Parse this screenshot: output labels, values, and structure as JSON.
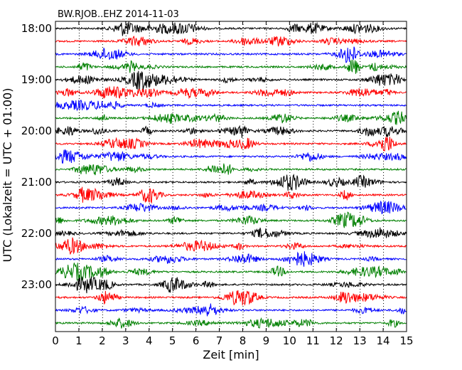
{
  "chart_data": {
    "type": "line",
    "title": "BW.RJOB..EHZ 2014-11-03",
    "xlabel": "Zeit  [min]",
    "ylabel": "UTC (Lokalzeit = UTC + 01:00)",
    "xlim": [
      0,
      15
    ],
    "x_ticks": [
      "0",
      "1",
      "2",
      "3",
      "4",
      "5",
      "6",
      "7",
      "8",
      "9",
      "10",
      "11",
      "12",
      "13",
      "14",
      "15"
    ],
    "y_tick_labels": [
      "18:00",
      "19:00",
      "20:00",
      "21:00",
      "22:00",
      "23:00"
    ],
    "grid": "vertical dotted lines at each minute",
    "trace_colors": [
      "#000000",
      "#ff0000",
      "#0000ff",
      "#008000"
    ],
    "traces": [
      {
        "start": "18:00",
        "color": "#000000"
      },
      {
        "start": "18:15",
        "color": "#ff0000"
      },
      {
        "start": "18:30",
        "color": "#0000ff"
      },
      {
        "start": "18:45",
        "color": "#008000"
      },
      {
        "start": "19:00",
        "color": "#000000"
      },
      {
        "start": "19:15",
        "color": "#ff0000"
      },
      {
        "start": "19:30",
        "color": "#0000ff"
      },
      {
        "start": "19:45",
        "color": "#008000"
      },
      {
        "start": "20:00",
        "color": "#000000"
      },
      {
        "start": "20:15",
        "color": "#ff0000"
      },
      {
        "start": "20:30",
        "color": "#0000ff"
      },
      {
        "start": "20:45",
        "color": "#008000"
      },
      {
        "start": "21:00",
        "color": "#000000"
      },
      {
        "start": "21:15",
        "color": "#ff0000"
      },
      {
        "start": "21:30",
        "color": "#0000ff"
      },
      {
        "start": "21:45",
        "color": "#008000"
      },
      {
        "start": "22:00",
        "color": "#000000"
      },
      {
        "start": "22:15",
        "color": "#ff0000"
      },
      {
        "start": "22:30",
        "color": "#0000ff"
      },
      {
        "start": "22:45",
        "color": "#008000"
      },
      {
        "start": "23:00",
        "color": "#000000"
      },
      {
        "start": "23:15",
        "color": "#ff0000"
      },
      {
        "start": "23:30",
        "color": "#0000ff"
      },
      {
        "start": "23:45",
        "color": "#008000"
      }
    ]
  }
}
